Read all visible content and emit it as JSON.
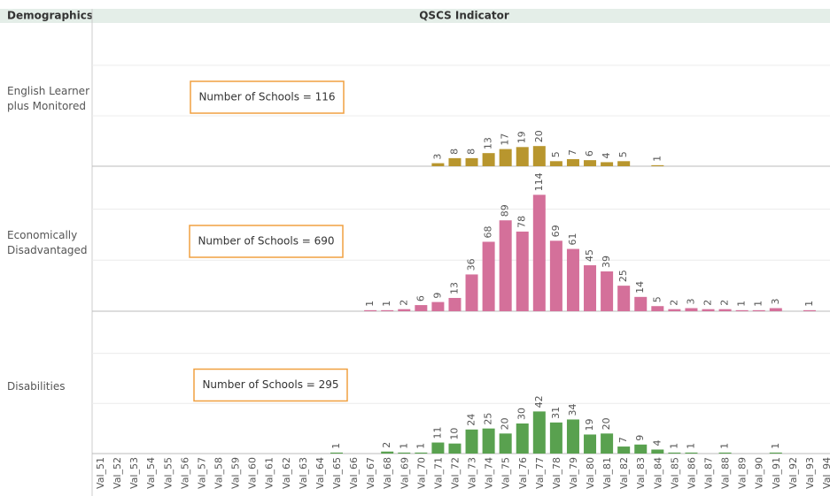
{
  "chart_data": {
    "type": "bar",
    "row_header": "Demographics",
    "column_header": "QSCS Indicator",
    "categories": [
      "Val_51",
      "Val_52",
      "Val_53",
      "Val_54",
      "Val_55",
      "Val_56",
      "Val_57",
      "Val_58",
      "Val_59",
      "Val_60",
      "Val_61",
      "Val_62",
      "Val_63",
      "Val_64",
      "Val_65",
      "Val_66",
      "Val_67",
      "Val_68",
      "Val_69",
      "Val_70",
      "Val_71",
      "Val_72",
      "Val_73",
      "Val_74",
      "Val_75",
      "Val_76",
      "Val_77",
      "Val_78",
      "Val_79",
      "Val_80",
      "Val_81",
      "Val_82",
      "Val_83",
      "Val_84",
      "Val_85",
      "Val_86",
      "Val_87",
      "Val_88",
      "Val_89",
      "Val_90",
      "Val_91",
      "Val_92",
      "Val_93",
      "Val_94"
    ],
    "ylim": [
      0,
      142
    ],
    "yticks": [
      0,
      50,
      100
    ],
    "grid": true,
    "series": [
      {
        "name": "English Learner plus Monitored",
        "color": "#b8962e",
        "annotation": "Number of Schools = 116",
        "values": [
          null,
          null,
          null,
          null,
          null,
          null,
          null,
          null,
          null,
          null,
          null,
          null,
          null,
          null,
          null,
          null,
          null,
          null,
          null,
          null,
          3,
          8,
          8,
          13,
          17,
          19,
          20,
          5,
          7,
          6,
          4,
          5,
          null,
          1,
          null,
          null,
          null,
          null,
          null,
          null,
          null,
          null,
          null,
          null
        ]
      },
      {
        "name": "Economically Disadvantaged",
        "color": "#d4709a",
        "annotation": "Number of Schools = 690",
        "values": [
          null,
          null,
          null,
          null,
          null,
          null,
          null,
          null,
          null,
          null,
          null,
          null,
          null,
          null,
          null,
          null,
          1,
          1,
          2,
          6,
          9,
          13,
          36,
          68,
          89,
          78,
          114,
          69,
          61,
          45,
          39,
          25,
          14,
          5,
          2,
          3,
          2,
          2,
          1,
          1,
          3,
          null,
          1,
          null
        ]
      },
      {
        "name": "Disabilities",
        "color": "#59a14f",
        "annotation": "Number of Schools = 295",
        "values": [
          null,
          null,
          null,
          null,
          null,
          null,
          null,
          null,
          null,
          null,
          null,
          null,
          null,
          null,
          1,
          null,
          null,
          2,
          1,
          1,
          11,
          10,
          24,
          25,
          20,
          30,
          42,
          31,
          34,
          19,
          20,
          7,
          9,
          4,
          1,
          1,
          null,
          1,
          null,
          null,
          1,
          null,
          null,
          null
        ]
      }
    ]
  }
}
